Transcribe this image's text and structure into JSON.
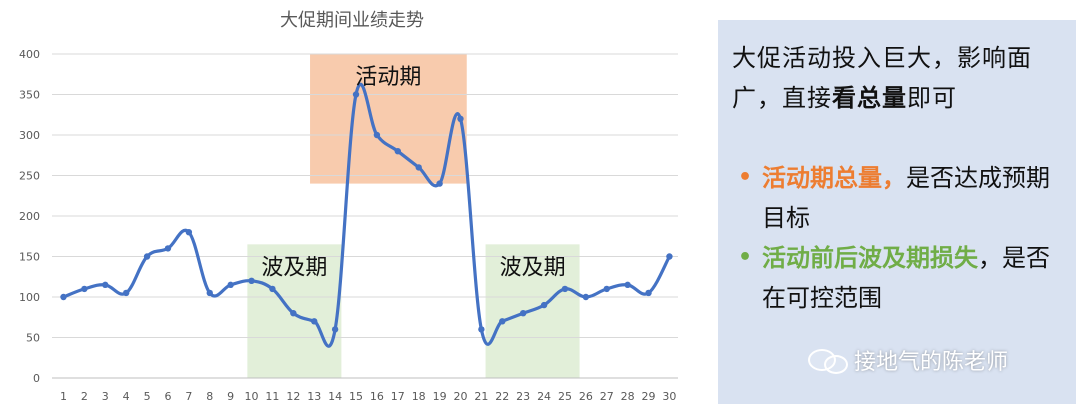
{
  "chart_data": {
    "type": "line",
    "title": "大促期间业绩走势",
    "x": [
      1,
      2,
      3,
      4,
      5,
      6,
      7,
      8,
      9,
      10,
      11,
      12,
      13,
      14,
      15,
      16,
      17,
      18,
      19,
      20,
      21,
      22,
      23,
      24,
      25,
      26,
      27,
      28,
      29,
      30
    ],
    "series": [
      {
        "values": [
          100,
          110,
          115,
          105,
          150,
          160,
          180,
          105,
          115,
          120,
          110,
          80,
          70,
          60,
          350,
          300,
          280,
          260,
          240,
          320,
          60,
          70,
          80,
          90,
          110,
          100,
          110,
          115,
          105,
          150
        ]
      }
    ],
    "ylim": [
      0,
      400
    ],
    "yticks": [
      0,
      50,
      100,
      150,
      200,
      250,
      300,
      350,
      400
    ],
    "grid": true,
    "regions": [
      {
        "label": "活动期",
        "x_from": 12.8,
        "x_to": 20.3,
        "y_from": 240,
        "y_to": 400,
        "color": "#f8cbad"
      },
      {
        "label": "波及期",
        "x_from": 9.8,
        "x_to": 14.3,
        "y_from": 0,
        "y_to": 165,
        "color": "#e2efd9"
      },
      {
        "label": "波及期",
        "x_from": 21.2,
        "x_to": 25.7,
        "y_from": 0,
        "y_to": 165,
        "color": "#e2efd9"
      }
    ],
    "line_color": "#4472c4"
  },
  "panel": {
    "intro_prefix": "大促活动投入巨大，影响面广，直接",
    "intro_bold": "看总量",
    "intro_suffix": "即可",
    "bullet1_dot": "•",
    "bullet1_highlight": "活动期总量，",
    "bullet1_rest": "是否达成预期目标",
    "bullet2_dot": "•",
    "bullet2_highlight": "活动前后波及期损失",
    "bullet2_rest": "，是否在可控范围"
  },
  "watermark": {
    "text": "接地气的陈老师"
  }
}
